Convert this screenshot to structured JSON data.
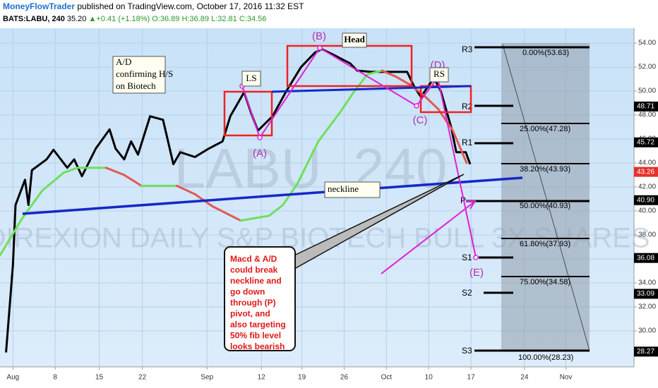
{
  "header": {
    "author": "MoneyFlowTrader",
    "published": "published on TradingView.com, October 17, 2016 11:32 EST",
    "symbol": "BATS:LABU, 240",
    "last": "35.20",
    "arrow": "▲",
    "change": "+0.41 (+1.18%)",
    "open": "O:36.89",
    "high": "H:36.89",
    "low": "L:32.81",
    "close": "C:34.56"
  },
  "chart_data": {
    "type": "line",
    "watermark": {
      "ticker": "LABU, 240",
      "name": "DIREXION DAILY S&P BIOTECH BULL 3X SHARES"
    },
    "xlim": [
      -1.5,
      72
    ],
    "xticks": [
      {
        "value": 0,
        "label": "Aug"
      },
      {
        "value": 4.9,
        "label": "8"
      },
      {
        "value": 10,
        "label": "15"
      },
      {
        "value": 15,
        "label": "22"
      },
      {
        "value": 22.5,
        "label": "Sep"
      },
      {
        "value": 28.8,
        "label": "12"
      },
      {
        "value": 33.5,
        "label": "19"
      },
      {
        "value": 38.4,
        "label": "26"
      },
      {
        "value": 43.3,
        "label": "Oct"
      },
      {
        "value": 48.2,
        "label": "10"
      },
      {
        "value": 53.1,
        "label": "17"
      },
      {
        "value": 59.3,
        "label": "24"
      },
      {
        "value": 64.1,
        "label": "Nov"
      }
    ],
    "ylim": [
      27,
      55.24
    ],
    "yticks": [
      {
        "value": 30,
        "label": "30.00"
      },
      {
        "value": 32,
        "label": "32.00"
      },
      {
        "value": 34,
        "label": "34.00"
      },
      {
        "value": 36,
        "label": "36.00"
      },
      {
        "value": 38,
        "label": "38.00"
      },
      {
        "value": 40,
        "label": "40.00"
      },
      {
        "value": 42,
        "label": "42.00"
      },
      {
        "value": 44,
        "label": "44.00"
      },
      {
        "value": 46,
        "label": "46.00"
      },
      {
        "value": 48,
        "label": "48.00"
      },
      {
        "value": 50,
        "label": "50.00"
      },
      {
        "value": 52,
        "label": "52.00"
      },
      {
        "value": 54,
        "label": "54.00"
      }
    ],
    "grid": true,
    "series": [
      {
        "color": "#000000",
        "x": [
          -0.8,
          0,
          0.3,
          1.4,
          1.8,
          2.2,
          3.9,
          4.7,
          6.3,
          7.1,
          8.0,
          9.6,
          11.2,
          11.9,
          12.9,
          13.7,
          14.5,
          15.9,
          17.4,
          18.6,
          19.4,
          21.1,
          22.7,
          24.3,
          25.2,
          26.8,
          27.6,
          28.4,
          30.1,
          31.7,
          33.4,
          35.0,
          35.8,
          37.5,
          39.1,
          39.9,
          41.6,
          43.2,
          45.7,
          46.5,
          47.3,
          48.8,
          49.6,
          50.8,
          51.4,
          52.5,
          53.0
        ],
        "values": [
          28.2,
          35.5,
          40.5,
          42.6,
          40.5,
          43.4,
          44.3,
          45.1,
          43.6,
          44.3,
          42.9,
          45.2,
          46.8,
          45.2,
          44.3,
          45.8,
          44.7,
          47.9,
          47.6,
          43.9,
          44.9,
          44.5,
          45.2,
          45.8,
          47.9,
          49.9,
          48.2,
          46.7,
          47.9,
          50.0,
          52.0,
          53.2,
          53.5,
          52.9,
          52.3,
          51.7,
          51.6,
          51.6,
          51.6,
          50.4,
          49.5,
          51.1,
          50.0,
          47.0,
          44.9,
          44.9,
          43.9
        ]
      },
      {
        "up_color": "#6ee05a",
        "down_color": "#e05a55",
        "x": [
          -1.5,
          1.0,
          3.4,
          5.9,
          7.5,
          10.8,
          12.9,
          14.9,
          16.6,
          19.0,
          21.1,
          23.1,
          26.4,
          29.7,
          31.3,
          33.0,
          35.4,
          37.9,
          39.5,
          41.1,
          42.8,
          44.4,
          46.1,
          47.7,
          49.3,
          51.0,
          52.6
        ],
        "values": [
          36.3,
          39.3,
          41.7,
          43.2,
          43.6,
          43.6,
          43.0,
          42.1,
          42.1,
          42.1,
          41.4,
          40.4,
          39.2,
          39.6,
          40.5,
          42.3,
          45.8,
          48.2,
          49.9,
          51.4,
          51.7,
          51.2,
          50.5,
          49.6,
          48.5,
          46.7,
          44.0
        ]
      }
    ],
    "price_tags": [
      {
        "value": 48.71,
        "label": "48.71",
        "color": "#000000"
      },
      {
        "value": 45.72,
        "label": "45.72",
        "color": "#000000"
      },
      {
        "value": 43.26,
        "label": "43.26",
        "color": "#e8302a"
      },
      {
        "value": 40.9,
        "label": "40.90",
        "color": "#000000"
      },
      {
        "value": 36.08,
        "label": "36.08",
        "color": "#000000"
      },
      {
        "value": 33.09,
        "label": "33.09",
        "color": "#000000"
      },
      {
        "value": 28.27,
        "label": "28.27",
        "color": "#000000"
      }
    ],
    "annotations": {
      "ad_note": [
        "A/D",
        "confirming H/S",
        "on Biotech"
      ],
      "ls": "LS",
      "head": "Head",
      "rs": "RS",
      "neckline": "neckline",
      "a": "(A)",
      "b": "(B)",
      "c": "(C)",
      "d": "(D)",
      "e": "(E)",
      "callout": [
        "Macd & A/D",
        "could break",
        "neckline and",
        "go down",
        "through (P)",
        "pivot, and",
        "also targeting",
        "50% fib level",
        "looks bearish"
      ],
      "pivots": [
        "R3",
        "R2",
        "R1",
        "P",
        "S1",
        "S2",
        "S3"
      ],
      "fib": [
        "0.00%(53.63)",
        "25.00%(47.28)",
        "38.20%(43.93)",
        "50.00%(40.93)",
        "61.80%(37.93)",
        "75.00%(34.58)",
        "100.00%(28.23)"
      ]
    }
  }
}
